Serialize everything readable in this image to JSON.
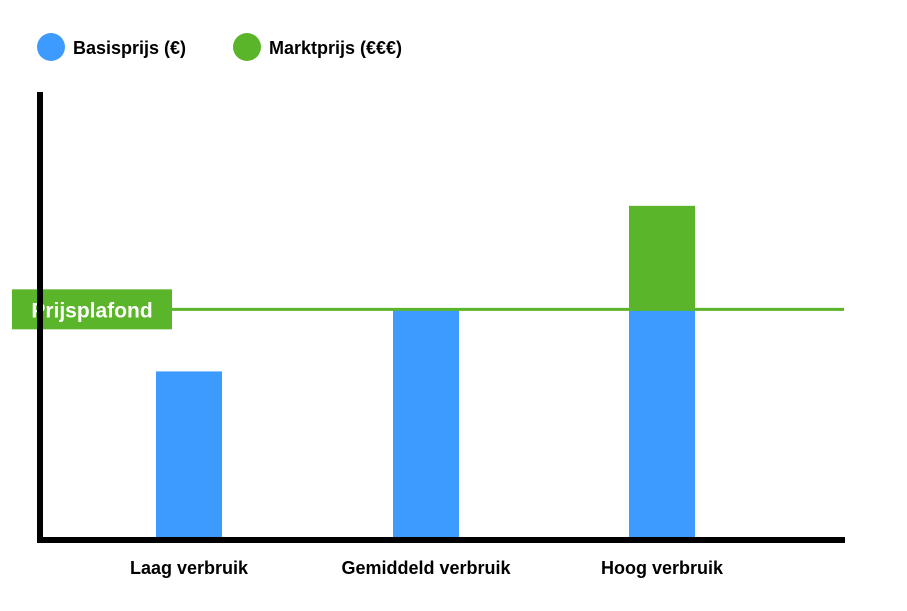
{
  "chart_data": {
    "type": "bar",
    "stacked": true,
    "categories": [
      "Laag verbruik",
      "Gemiddeld verbruik",
      "Hoog verbruik"
    ],
    "series": [
      {
        "name": "Basisprijs (€)",
        "color": "#3d9bff",
        "values": [
          1.6,
          2.2,
          2.2
        ]
      },
      {
        "name": "Marktprijs (€€€)",
        "color": "#5bb52a",
        "values": [
          0,
          0,
          1.0
        ]
      }
    ],
    "reference_line": {
      "label": "Prijsplafond",
      "value": 2.2,
      "color": "#5bb52a"
    },
    "ylim": [
      0,
      4.3
    ],
    "legend_position": "top-left",
    "grid": false,
    "axis_color": "#000000"
  }
}
